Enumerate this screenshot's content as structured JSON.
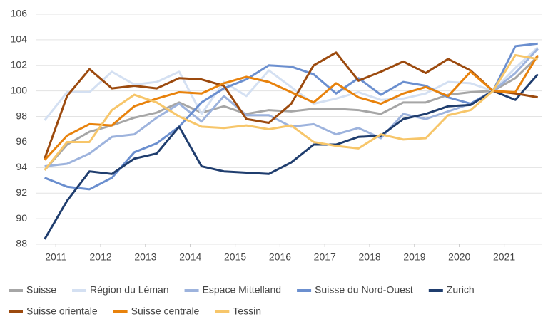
{
  "chart_data": {
    "type": "line",
    "x": [
      2010.75,
      2011.25,
      2011.75,
      2012.25,
      2012.75,
      2013.25,
      2013.75,
      2014.25,
      2014.75,
      2015.25,
      2015.75,
      2016.25,
      2016.75,
      2017.25,
      2017.75,
      2018.25,
      2018.75,
      2019.25,
      2019.75,
      2020.25,
      2020.75,
      2021.25,
      2021.75
    ],
    "xlim": [
      2010.55,
      2021.85
    ],
    "xticks": [
      2011,
      2012,
      2013,
      2014,
      2015,
      2016,
      2017,
      2018,
      2019,
      2020,
      2021
    ],
    "ylim": [
      88,
      106
    ],
    "yticks": [
      88,
      90,
      92,
      94,
      96,
      98,
      100,
      102,
      104,
      106
    ],
    "grid": true,
    "legend": "bottom",
    "series": [
      {
        "name": "Suisse",
        "color": "#a6a6a6",
        "values": [
          93.8,
          95.8,
          96.8,
          97.3,
          97.9,
          98.3,
          99.1,
          98.3,
          98.8,
          98.2,
          98.5,
          98.4,
          98.6,
          98.6,
          98.5,
          98.2,
          99.1,
          99.1,
          99.7,
          99.9,
          100.0,
          101.0,
          102.7
        ]
      },
      {
        "name": "Région du Léman",
        "color": "#d4e0f2",
        "values": [
          97.7,
          99.9,
          99.9,
          101.5,
          100.5,
          100.7,
          101.5,
          98.2,
          100.7,
          99.6,
          101.6,
          100.3,
          99.0,
          99.4,
          99.9,
          99.3,
          99.4,
          99.8,
          100.7,
          100.6,
          100.0,
          101.8,
          103.4
        ]
      },
      {
        "name": "Espace Mittelland",
        "color": "#9db3dd",
        "values": [
          94.1,
          94.3,
          95.1,
          96.4,
          96.6,
          97.9,
          99.0,
          97.6,
          99.6,
          98.1,
          98.1,
          97.2,
          97.4,
          96.6,
          97.1,
          96.3,
          98.2,
          97.8,
          98.4,
          99.0,
          100.0,
          101.4,
          103.3
        ]
      },
      {
        "name": "Suisse du Nord-Ouest",
        "color": "#6b8fcf",
        "values": [
          93.2,
          92.5,
          92.3,
          93.2,
          95.2,
          95.9,
          97.2,
          99.1,
          100.2,
          100.9,
          102.0,
          101.9,
          101.3,
          99.8,
          101.0,
          99.7,
          100.7,
          100.4,
          99.5,
          99.0,
          100.0,
          103.5,
          103.7
        ]
      },
      {
        "name": "Zurich",
        "color": "#1f3d6e",
        "values": [
          88.4,
          91.4,
          93.7,
          93.5,
          94.7,
          95.1,
          97.2,
          94.1,
          93.7,
          93.6,
          93.5,
          94.4,
          95.8,
          95.8,
          96.4,
          96.5,
          97.8,
          98.2,
          98.8,
          98.9,
          100.0,
          99.3,
          101.3
        ]
      },
      {
        "name": "Suisse orientale",
        "color": "#9c4a0e",
        "values": [
          94.7,
          99.6,
          101.7,
          100.2,
          100.4,
          100.2,
          101.0,
          100.9,
          100.4,
          97.8,
          97.5,
          99.0,
          102.0,
          103.0,
          100.8,
          101.5,
          102.3,
          101.4,
          102.5,
          101.6,
          100.0,
          99.8,
          99.5
        ]
      },
      {
        "name": "Suisse centrale",
        "color": "#e8820c",
        "values": [
          94.6,
          96.5,
          97.4,
          97.3,
          98.8,
          99.4,
          99.9,
          99.8,
          100.6,
          101.1,
          100.7,
          99.9,
          99.1,
          100.6,
          99.5,
          99.0,
          99.8,
          100.3,
          99.6,
          101.5,
          100.0,
          99.9,
          102.8
        ]
      },
      {
        "name": "Tessin",
        "color": "#f7c66a",
        "values": [
          93.8,
          96.0,
          96.0,
          98.5,
          99.7,
          99.1,
          98.0,
          97.2,
          97.1,
          97.3,
          97.0,
          97.3,
          96.0,
          95.7,
          95.5,
          96.6,
          96.2,
          96.3,
          98.1,
          98.5,
          100.0,
          102.8,
          102.5
        ]
      }
    ]
  }
}
